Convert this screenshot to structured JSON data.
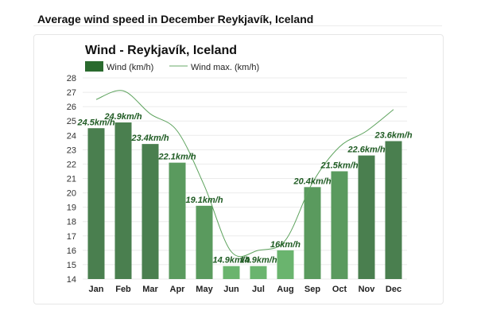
{
  "page": {
    "title": "Average wind speed in December Reykjavík, Iceland"
  },
  "chart_data": {
    "type": "bar",
    "title": "Wind - Reykjavík, Iceland",
    "xlabel": "",
    "ylabel": "",
    "ylim": [
      14,
      28
    ],
    "yticks": [
      14,
      15,
      16,
      17,
      18,
      19,
      20,
      21,
      22,
      23,
      24,
      25,
      26,
      27,
      28
    ],
    "grid": true,
    "legend_position": "top-left",
    "categories": [
      "Jan",
      "Feb",
      "Mar",
      "Apr",
      "May",
      "Jun",
      "Jul",
      "Aug",
      "Sep",
      "Oct",
      "Nov",
      "Dec"
    ],
    "series": [
      {
        "name": "Wind (km/h)",
        "type": "bar",
        "values": [
          24.5,
          24.9,
          23.4,
          22.1,
          19.1,
          14.9,
          14.9,
          16,
          20.4,
          21.5,
          22.6,
          23.6
        ],
        "labels": [
          "24.5km/h",
          "24.9km/h",
          "23.4km/h",
          "22.1km/h",
          "19.1km/h",
          "14.9km/h",
          "14.9km/h",
          "16km/h",
          "20.4km/h",
          "21.5km/h",
          "22.6km/h",
          "23.6km/h"
        ]
      },
      {
        "name": "Wind max. (km/h)",
        "type": "line",
        "values": [
          26.5,
          27.1,
          25.5,
          24.3,
          20.5,
          15.9,
          16.0,
          16.7,
          20.7,
          23.2,
          24.3,
          25.8
        ]
      }
    ],
    "colors": {
      "bar_dark": "#4a7f4f",
      "bar_mid": "#5a9a5e",
      "bar_light": "#6ab46e",
      "line": "#5ea35e",
      "label": "#1f5b23",
      "legend_bar": "#2a6a2e"
    }
  }
}
